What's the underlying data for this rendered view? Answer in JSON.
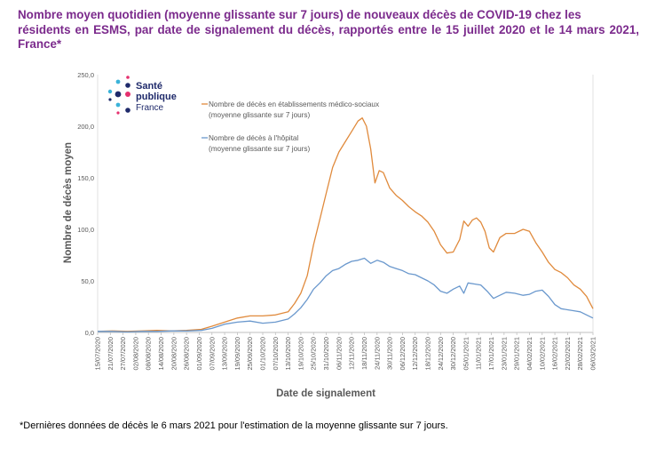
{
  "header": {
    "title_line1": "Nombre moyen quotidien (moyenne glissante sur 7 jours) de nouveaux décès de COVID-19 chez les",
    "title_line2": "résidents en ESMS, par date de signalement du décès, rapportés entre le 15 juillet 2020 et le 14 mars 2021, France*"
  },
  "footnote": "*Dernières données de décès le 6 mars 2021 pour l'estimation de la moyenne glissante sur 7 jours.",
  "logo": {
    "line1": "Santé",
    "line2": "publique",
    "line3": "France"
  },
  "chart_data": {
    "type": "line",
    "xlabel": "Date de signalement",
    "ylabel": "Nombre de décès moyen",
    "ylim": [
      0,
      250
    ],
    "y_ticks": [
      "0,0",
      "50,0",
      "100,0",
      "150,0",
      "200,0",
      "250,0"
    ],
    "x_ticks": [
      "15/07/2020",
      "21/07/2020",
      "27/07/2020",
      "02/08/2020",
      "08/08/2020",
      "14/08/2020",
      "20/08/2020",
      "26/08/2020",
      "01/09/2020",
      "07/09/2020",
      "13/09/2020",
      "19/09/2020",
      "25/09/2020",
      "01/10/2020",
      "07/10/2020",
      "13/10/2020",
      "19/10/2020",
      "25/10/2020",
      "31/10/2020",
      "06/11/2020",
      "12/11/2020",
      "18/11/2020",
      "24/11/2020",
      "30/11/2020",
      "06/12/2020",
      "12/12/2020",
      "18/12/2020",
      "24/12/2020",
      "30/12/2020",
      "05/01/2021",
      "11/01/2021",
      "17/01/2021",
      "23/01/2021",
      "29/01/2021",
      "04/02/2021",
      "10/02/2021",
      "16/02/2021",
      "22/02/2021",
      "28/02/2021",
      "06/03/2021"
    ],
    "grid": false,
    "legend_position": "top-left",
    "series": [
      {
        "name": "Nombre de décès en établissements médico-sociaux (moyenne glissante sur 7 jours)",
        "color": "#e08a3c",
        "points": [
          [
            "15/07/2020",
            1
          ],
          [
            "22/07/2020",
            1.5
          ],
          [
            "29/07/2020",
            1
          ],
          [
            "05/08/2020",
            1.5
          ],
          [
            "12/08/2020",
            2
          ],
          [
            "19/08/2020",
            1.5
          ],
          [
            "26/08/2020",
            2
          ],
          [
            "02/09/2020",
            3
          ],
          [
            "07/09/2020",
            6
          ],
          [
            "13/09/2020",
            10
          ],
          [
            "19/09/2020",
            14
          ],
          [
            "25/09/2020",
            16
          ],
          [
            "01/10/2020",
            16
          ],
          [
            "07/10/2020",
            17
          ],
          [
            "13/10/2020",
            20
          ],
          [
            "16/10/2020",
            28
          ],
          [
            "19/10/2020",
            38
          ],
          [
            "22/10/2020",
            55
          ],
          [
            "25/10/2020",
            85
          ],
          [
            "28/10/2020",
            110
          ],
          [
            "31/10/2020",
            135
          ],
          [
            "03/11/2020",
            160
          ],
          [
            "06/11/2020",
            175
          ],
          [
            "09/11/2020",
            185
          ],
          [
            "12/11/2020",
            195
          ],
          [
            "15/11/2020",
            205
          ],
          [
            "17/11/2020",
            208
          ],
          [
            "19/11/2020",
            200
          ],
          [
            "21/11/2020",
            178
          ],
          [
            "23/11/2020",
            145
          ],
          [
            "25/11/2020",
            157
          ],
          [
            "27/11/2020",
            155
          ],
          [
            "30/11/2020",
            140
          ],
          [
            "03/12/2020",
            133
          ],
          [
            "06/12/2020",
            128
          ],
          [
            "09/12/2020",
            122
          ],
          [
            "12/12/2020",
            117
          ],
          [
            "15/12/2020",
            113
          ],
          [
            "18/12/2020",
            107
          ],
          [
            "21/12/2020",
            98
          ],
          [
            "24/12/2020",
            85
          ],
          [
            "27/12/2020",
            77
          ],
          [
            "30/12/2020",
            78
          ],
          [
            "02/01/2021",
            90
          ],
          [
            "04/01/2021",
            108
          ],
          [
            "06/01/2021",
            103
          ],
          [
            "08/01/2021",
            109
          ],
          [
            "10/01/2021",
            111
          ],
          [
            "12/01/2021",
            107
          ],
          [
            "14/01/2021",
            98
          ],
          [
            "16/01/2021",
            82
          ],
          [
            "18/01/2021",
            78
          ],
          [
            "21/01/2021",
            92
          ],
          [
            "24/01/2021",
            96
          ],
          [
            "28/01/2021",
            96
          ],
          [
            "01/02/2021",
            100
          ],
          [
            "04/02/2021",
            98
          ],
          [
            "07/02/2021",
            87
          ],
          [
            "10/02/2021",
            78
          ],
          [
            "13/02/2021",
            68
          ],
          [
            "16/02/2021",
            61
          ],
          [
            "19/02/2021",
            58
          ],
          [
            "22/02/2021",
            53
          ],
          [
            "25/02/2021",
            46
          ],
          [
            "28/02/2021",
            42
          ],
          [
            "03/03/2021",
            35
          ],
          [
            "06/03/2021",
            23
          ]
        ]
      },
      {
        "name": "Nombre de décès à l'hôpital (moyenne glissante sur 7 jours)",
        "color": "#6a98cd",
        "points": [
          [
            "15/07/2020",
            1
          ],
          [
            "22/07/2020",
            1
          ],
          [
            "29/07/2020",
            0.5
          ],
          [
            "05/08/2020",
            1
          ],
          [
            "12/08/2020",
            1
          ],
          [
            "19/08/2020",
            1.5
          ],
          [
            "26/08/2020",
            1.5
          ],
          [
            "02/09/2020",
            2
          ],
          [
            "07/09/2020",
            4
          ],
          [
            "13/09/2020",
            8
          ],
          [
            "19/09/2020",
            10
          ],
          [
            "25/09/2020",
            11
          ],
          [
            "01/10/2020",
            9
          ],
          [
            "07/10/2020",
            10
          ],
          [
            "13/10/2020",
            13
          ],
          [
            "16/10/2020",
            18
          ],
          [
            "19/10/2020",
            24
          ],
          [
            "22/10/2020",
            32
          ],
          [
            "25/10/2020",
            42
          ],
          [
            "28/10/2020",
            48
          ],
          [
            "31/10/2020",
            55
          ],
          [
            "03/11/2020",
            60
          ],
          [
            "06/11/2020",
            62
          ],
          [
            "09/11/2020",
            66
          ],
          [
            "12/11/2020",
            69
          ],
          [
            "15/11/2020",
            70
          ],
          [
            "18/11/2020",
            72
          ],
          [
            "21/11/2020",
            67
          ],
          [
            "24/11/2020",
            70
          ],
          [
            "27/11/2020",
            68
          ],
          [
            "30/11/2020",
            64
          ],
          [
            "03/12/2020",
            62
          ],
          [
            "06/12/2020",
            60
          ],
          [
            "09/12/2020",
            57
          ],
          [
            "12/12/2020",
            56
          ],
          [
            "15/12/2020",
            53
          ],
          [
            "18/12/2020",
            50
          ],
          [
            "21/12/2020",
            46
          ],
          [
            "24/12/2020",
            40
          ],
          [
            "27/12/2020",
            38
          ],
          [
            "30/12/2020",
            42
          ],
          [
            "02/01/2021",
            45
          ],
          [
            "04/01/2021",
            38
          ],
          [
            "06/01/2021",
            48
          ],
          [
            "09/01/2021",
            47
          ],
          [
            "12/01/2021",
            46
          ],
          [
            "15/01/2021",
            40
          ],
          [
            "18/01/2021",
            33
          ],
          [
            "21/01/2021",
            36
          ],
          [
            "24/01/2021",
            39
          ],
          [
            "28/01/2021",
            38
          ],
          [
            "01/02/2021",
            36
          ],
          [
            "04/02/2021",
            37
          ],
          [
            "07/02/2021",
            40
          ],
          [
            "10/02/2021",
            41
          ],
          [
            "13/02/2021",
            35
          ],
          [
            "16/02/2021",
            27
          ],
          [
            "19/02/2021",
            23
          ],
          [
            "22/02/2021",
            22
          ],
          [
            "25/02/2021",
            21
          ],
          [
            "28/02/2021",
            20
          ],
          [
            "03/03/2021",
            17
          ],
          [
            "06/03/2021",
            14
          ]
        ]
      }
    ]
  }
}
